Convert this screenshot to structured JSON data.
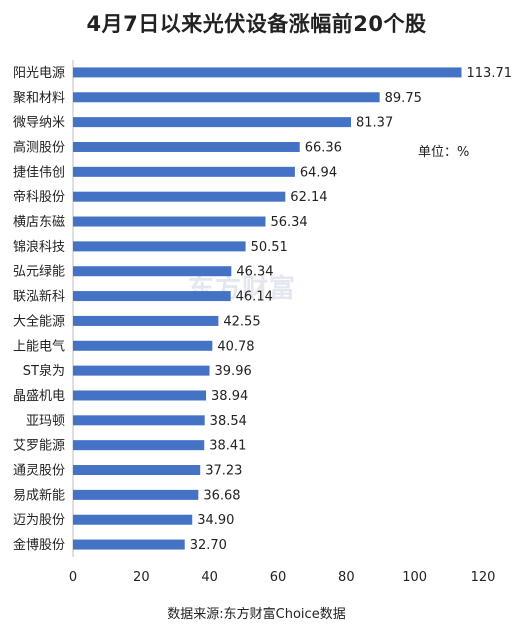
{
  "chart_data": {
    "type": "bar",
    "orientation": "horizontal",
    "title": "4月7日以来光伏设备涨幅前20个股",
    "unit_label": "单位：%",
    "categories": [
      "阳光电源",
      "聚和材料",
      "微导纳米",
      "高测股份",
      "捷佳伟创",
      "帝科股份",
      "横店东磁",
      "锦浪科技",
      "弘元绿能",
      "联泓新科",
      "大全能源",
      "上能电气",
      "ST泉为",
      "晶盛机电",
      "亚玛顿",
      "艾罗能源",
      "通灵股份",
      "易成新能",
      "迈为股份",
      "金博股份"
    ],
    "values": [
      113.71,
      89.75,
      81.37,
      66.36,
      64.94,
      62.14,
      56.34,
      50.51,
      46.34,
      46.14,
      42.55,
      40.78,
      39.96,
      38.94,
      38.54,
      38.41,
      37.23,
      36.68,
      34.9,
      32.7
    ],
    "value_labels": [
      "113.71",
      "89.75",
      "81.37",
      "66.36",
      "64.94",
      "62.14",
      "56.34",
      "50.51",
      "46.34",
      "46.14",
      "42.55",
      "40.78",
      "39.96",
      "38.94",
      "38.54",
      "38.41",
      "37.23",
      "36.68",
      "34.90",
      "32.70"
    ],
    "xlim": [
      0,
      120
    ],
    "xticks": [
      0,
      20,
      40,
      60,
      80,
      100,
      120
    ],
    "xtick_labels": [
      "0",
      "20",
      "40",
      "60",
      "80",
      "100",
      "120"
    ],
    "bar_color": "#4472c4",
    "grid": false,
    "legend": "none"
  },
  "watermark": "东方财富",
  "source_note": "数据来源:东方财富Choice数据"
}
